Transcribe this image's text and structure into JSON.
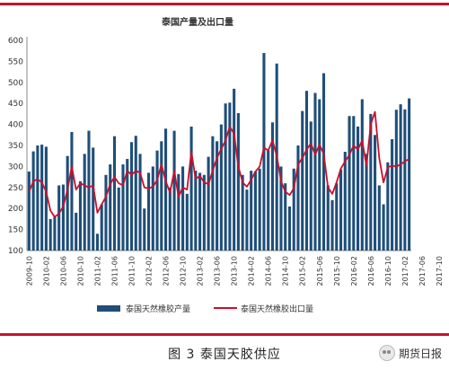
{
  "chart_data": {
    "type": "bar+line",
    "title": "泰国产量及出口量",
    "ylim": [
      100,
      600
    ],
    "yticks": [
      100,
      150,
      200,
      250,
      300,
      350,
      400,
      450,
      500,
      550,
      600
    ],
    "xtick_labels": [
      "2009-10",
      "2010-02",
      "2010-06",
      "2010-10",
      "2011-02",
      "2011-06",
      "2011-10",
      "2012-02",
      "2012-06",
      "2012-10",
      "2013-02",
      "2013-06",
      "2013-10",
      "2014-02",
      "2014-06",
      "2014-10",
      "2015-02",
      "2015-06",
      "2015-10",
      "2016-02",
      "2016-06",
      "2016-10",
      "2017-02",
      "2017-06",
      "2017-10"
    ],
    "grid": false,
    "legend_position": "bottom",
    "series": [
      {
        "name": "泰国天然橡胶产量",
        "type": "bar",
        "color": "#1f4e79",
        "values": [
          288,
          336,
          350,
          352,
          347,
          175,
          180,
          255,
          257,
          325,
          382,
          190,
          265,
          330,
          385,
          345,
          140,
          210,
          280,
          305,
          372,
          250,
          305,
          318,
          358,
          373,
          330,
          200,
          285,
          300,
          338,
          360,
          390,
          250,
          385,
          282,
          300,
          235,
          395,
          290,
          285,
          280,
          323,
          372,
          360,
          400,
          450,
          452,
          485,
          427,
          280,
          245,
          290,
          288,
          295,
          570,
          338,
          405,
          545,
          300,
          260,
          205,
          295,
          350,
          432,
          480,
          407,
          475,
          460,
          522,
          255,
          220,
          260,
          293,
          335,
          420,
          420,
          395,
          460,
          330,
          425,
          375,
          255,
          210,
          310,
          365,
          435,
          448,
          436,
          462
        ]
      },
      {
        "name": "泰国天然橡胶出口量",
        "type": "line",
        "color": "#c8102e",
        "values": [
          240,
          265,
          270,
          262,
          240,
          195,
          180,
          188,
          205,
          245,
          300,
          245,
          260,
          255,
          250,
          255,
          190,
          210,
          228,
          258,
          275,
          260,
          255,
          290,
          280,
          290,
          285,
          250,
          248,
          252,
          268,
          305,
          265,
          238,
          290,
          228,
          250,
          245,
          335,
          270,
          278,
          262,
          258,
          290,
          320,
          342,
          362,
          395,
          378,
          300,
          262,
          252,
          268,
          288,
          300,
          345,
          338,
          362,
          325,
          265,
          240,
          232,
          248,
          305,
          320,
          340,
          355,
          328,
          352,
          330,
          250,
          235,
          262,
          295,
          312,
          328,
          350,
          340,
          362,
          302,
          400,
          430,
          320,
          262,
          298,
          302,
          300,
          305,
          312,
          318
        ]
      }
    ]
  },
  "caption": "图 3 泰国天胶供应",
  "watermark": "期货日报"
}
